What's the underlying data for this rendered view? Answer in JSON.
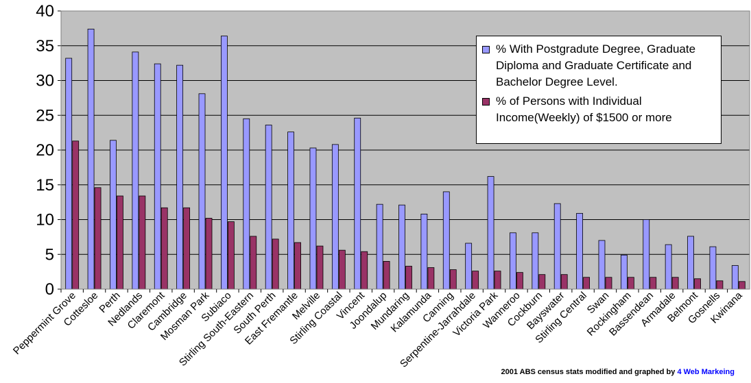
{
  "chart_data": {
    "type": "bar",
    "title": "",
    "xlabel": "",
    "ylabel": "",
    "ylim": [
      0,
      40
    ],
    "yticks": [
      0,
      5,
      10,
      15,
      20,
      25,
      30,
      35,
      40
    ],
    "grid": true,
    "legend_position": "top-right",
    "categories": [
      "Peppermint Grove",
      "Cottesloe",
      "Perth",
      "Nedlands",
      "Claremont",
      "Cambridge",
      "Mosman Park",
      "Subiaco",
      "Stirling South-Eastern",
      "South Perth",
      "East Fremantle",
      "Melville",
      "Stirling Coastal",
      "Vincent",
      "Joondalup",
      "Mundaring",
      "Kalamunda",
      "Canning",
      "Serpentine-Jarrahdale",
      "Victoria Park",
      "Wanneroo",
      "Cockburn",
      "Bayswater",
      "Stirling Central",
      "Swan",
      "Rockingham",
      "Bassendean",
      "Armadale",
      "Belmont",
      "Gosnells",
      "Kwinana"
    ],
    "series": [
      {
        "name": " % With Postgradute Degree, Graduate Diploma and Graduate Certificate and Bachelor Degree Level.",
        "color": "#9999ff",
        "values": [
          33.2,
          37.4,
          21.4,
          34.1,
          32.4,
          32.2,
          28.1,
          36.4,
          24.5,
          23.6,
          22.6,
          20.3,
          20.8,
          24.6,
          12.2,
          12.1,
          10.8,
          14.0,
          6.6,
          16.2,
          8.1,
          8.1,
          12.3,
          10.9,
          7.0,
          4.9,
          10.0,
          6.4,
          7.6,
          6.1,
          3.4
        ]
      },
      {
        "name": "% of Persons with Individual Income(Weekly) of  $1500 or more",
        "color": "#993366",
        "values": [
          21.3,
          14.6,
          13.4,
          13.4,
          11.7,
          11.7,
          10.2,
          9.7,
          7.6,
          7.2,
          6.7,
          6.2,
          5.6,
          5.4,
          4.0,
          3.3,
          3.1,
          2.8,
          2.6,
          2.6,
          2.4,
          2.1,
          2.1,
          1.7,
          1.7,
          1.7,
          1.7,
          1.7,
          1.5,
          1.2,
          1.1
        ]
      }
    ]
  },
  "footer": {
    "credit_prefix": "2001 ABS census stats modified and graphed by ",
    "credit_link": "4 Web Markeing"
  }
}
